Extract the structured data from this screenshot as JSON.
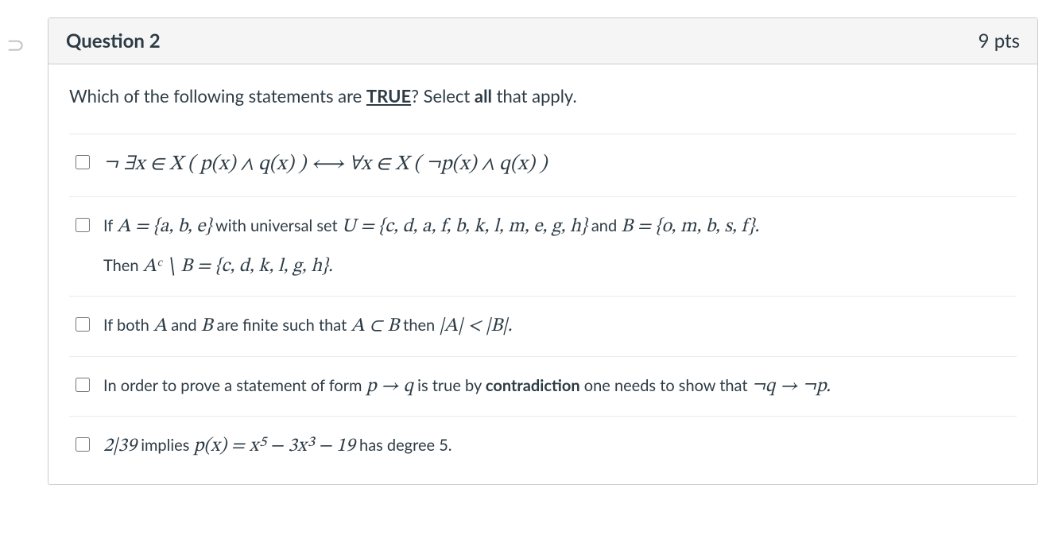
{
  "prev_indicator": "⊃",
  "question": {
    "title": "Question 2",
    "points": "9 pts"
  },
  "prompt": {
    "lead": "Which of the following statements are ",
    "true_word": "TRUE",
    "after_true": "?  Select ",
    "all_word": "all",
    "tail": " that apply."
  },
  "options": {
    "o1": {
      "math": "¬ ∃x ∈ X ( p(x) ∧ q(x) )  ⟷  ∀x ∈ X ( ¬p(x) ∧ q(x) )"
    },
    "o2": {
      "l1_pre": "If ",
      "l1_m1": "A = {a, b, e}",
      "l1_mid": " with universal set ",
      "l1_m2": "U = {c, d, a, f, b, k, l, m, e, g, h}",
      "l1_and": " and ",
      "l1_m3": "B = {o, m, b, s, f}.",
      "l2_pre": "Then ",
      "l2_m": "Aᶜ ∖ B = {c, d, k, l, g, h}."
    },
    "o3": {
      "pre": "If both ",
      "mA": "A",
      "mid1": " and ",
      "mB": "B",
      "mid2": " are finite such that ",
      "mSub": "A ⊂ B",
      "then": " then ",
      "mCard": "|A| < |B|."
    },
    "o4": {
      "pre": "In order to prove a statement of form ",
      "m1": "p → q",
      "mid": " is true by ",
      "bold": "contradiction",
      "mid2": " one needs to show that ",
      "m2": "¬q → ¬p."
    },
    "o5": {
      "m1": "2|39",
      "mid1": " implies ",
      "m2": "p(x) = x⁵ − 3x³ − 19",
      "tail": " has degree 5."
    }
  }
}
